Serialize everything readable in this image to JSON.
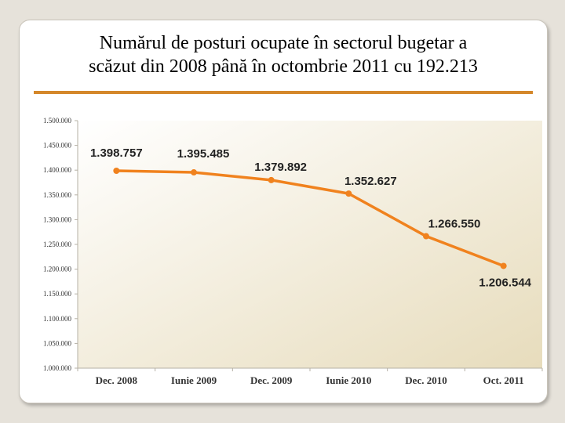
{
  "slide": {
    "title_line1": "Numărul de posturi ocupate în sectorul bugetar a",
    "title_line2": "scăzut din 2008 până în octombrie 2011 cu 192.213"
  },
  "colors": {
    "series": "#f0821e",
    "plot_background_light": "#ffffff",
    "plot_background_dark": "#e7dcbc",
    "rule": "#d4872a"
  },
  "chart_data": {
    "type": "line",
    "title": "Numărul de posturi ocupate în sectorul bugetar a scăzut din 2008 până în octombrie 2011 cu 192.213",
    "xlabel": "",
    "ylabel": "",
    "categories": [
      "Dec. 2008",
      "Iunie 2009",
      "Dec. 2009",
      "Iunie 2010",
      "Dec. 2010",
      "Oct. 2011"
    ],
    "values": [
      1398757,
      1395485,
      1379892,
      1352627,
      1266550,
      1206544
    ],
    "data_labels": [
      "1.398.757",
      "1.395.485",
      "1.379.892",
      "1.352.627",
      "1.266.550",
      "1.206.544"
    ],
    "ylim": [
      1000000,
      1500000
    ],
    "yticks": [
      1000000,
      1050000,
      1100000,
      1150000,
      1200000,
      1250000,
      1300000,
      1350000,
      1400000,
      1450000,
      1500000
    ],
    "ytick_labels": [
      "1.000.000",
      "1.050.000",
      "1.100.000",
      "1.150.000",
      "1.200.000",
      "1.250.000",
      "1.300.000",
      "1.350.000",
      "1.400.000",
      "1.450.000",
      "1.500.000"
    ],
    "grid": false,
    "legend": "none",
    "markers": true
  }
}
